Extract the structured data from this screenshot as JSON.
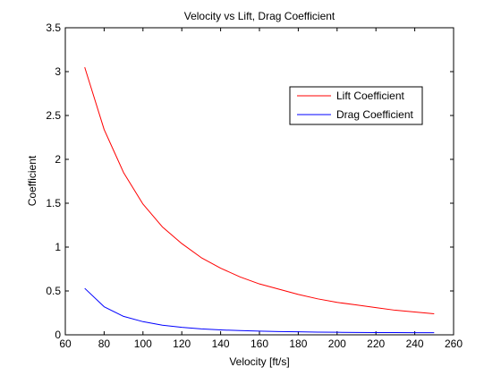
{
  "chart_data": {
    "type": "line",
    "title": "Velocity vs Lift, Drag Coefficient",
    "xlabel": "Velocity [ft/s]",
    "ylabel": "Coefficient",
    "xlim": [
      60,
      260
    ],
    "ylim": [
      0,
      3.5
    ],
    "xticks": [
      60,
      80,
      100,
      120,
      140,
      160,
      180,
      200,
      220,
      240,
      260
    ],
    "yticks": [
      0,
      0.5,
      1,
      1.5,
      2,
      2.5,
      3,
      3.5
    ],
    "xtick_labels": [
      "60",
      "80",
      "100",
      "120",
      "140",
      "160",
      "180",
      "200",
      "220",
      "240",
      "260"
    ],
    "ytick_labels": [
      "0",
      "0.5",
      "1",
      "1.5",
      "2",
      "2.5",
      "3",
      "3.5"
    ],
    "grid": false,
    "legend_position": "top-right",
    "x": [
      70,
      80,
      90,
      100,
      110,
      120,
      130,
      140,
      150,
      160,
      170,
      180,
      190,
      200,
      210,
      220,
      230,
      240,
      250
    ],
    "series": [
      {
        "name": "Lift Coefficient",
        "color": "#ff0000",
        "values": [
          3.05,
          2.34,
          1.85,
          1.49,
          1.23,
          1.04,
          0.88,
          0.76,
          0.66,
          0.58,
          0.52,
          0.46,
          0.41,
          0.37,
          0.34,
          0.31,
          0.28,
          0.26,
          0.24
        ]
      },
      {
        "name": "Drag Coefficient",
        "color": "#0000ff",
        "values": [
          0.53,
          0.32,
          0.21,
          0.15,
          0.11,
          0.085,
          0.068,
          0.056,
          0.048,
          0.042,
          0.037,
          0.034,
          0.031,
          0.029,
          0.027,
          0.026,
          0.025,
          0.024,
          0.024
        ]
      }
    ]
  }
}
